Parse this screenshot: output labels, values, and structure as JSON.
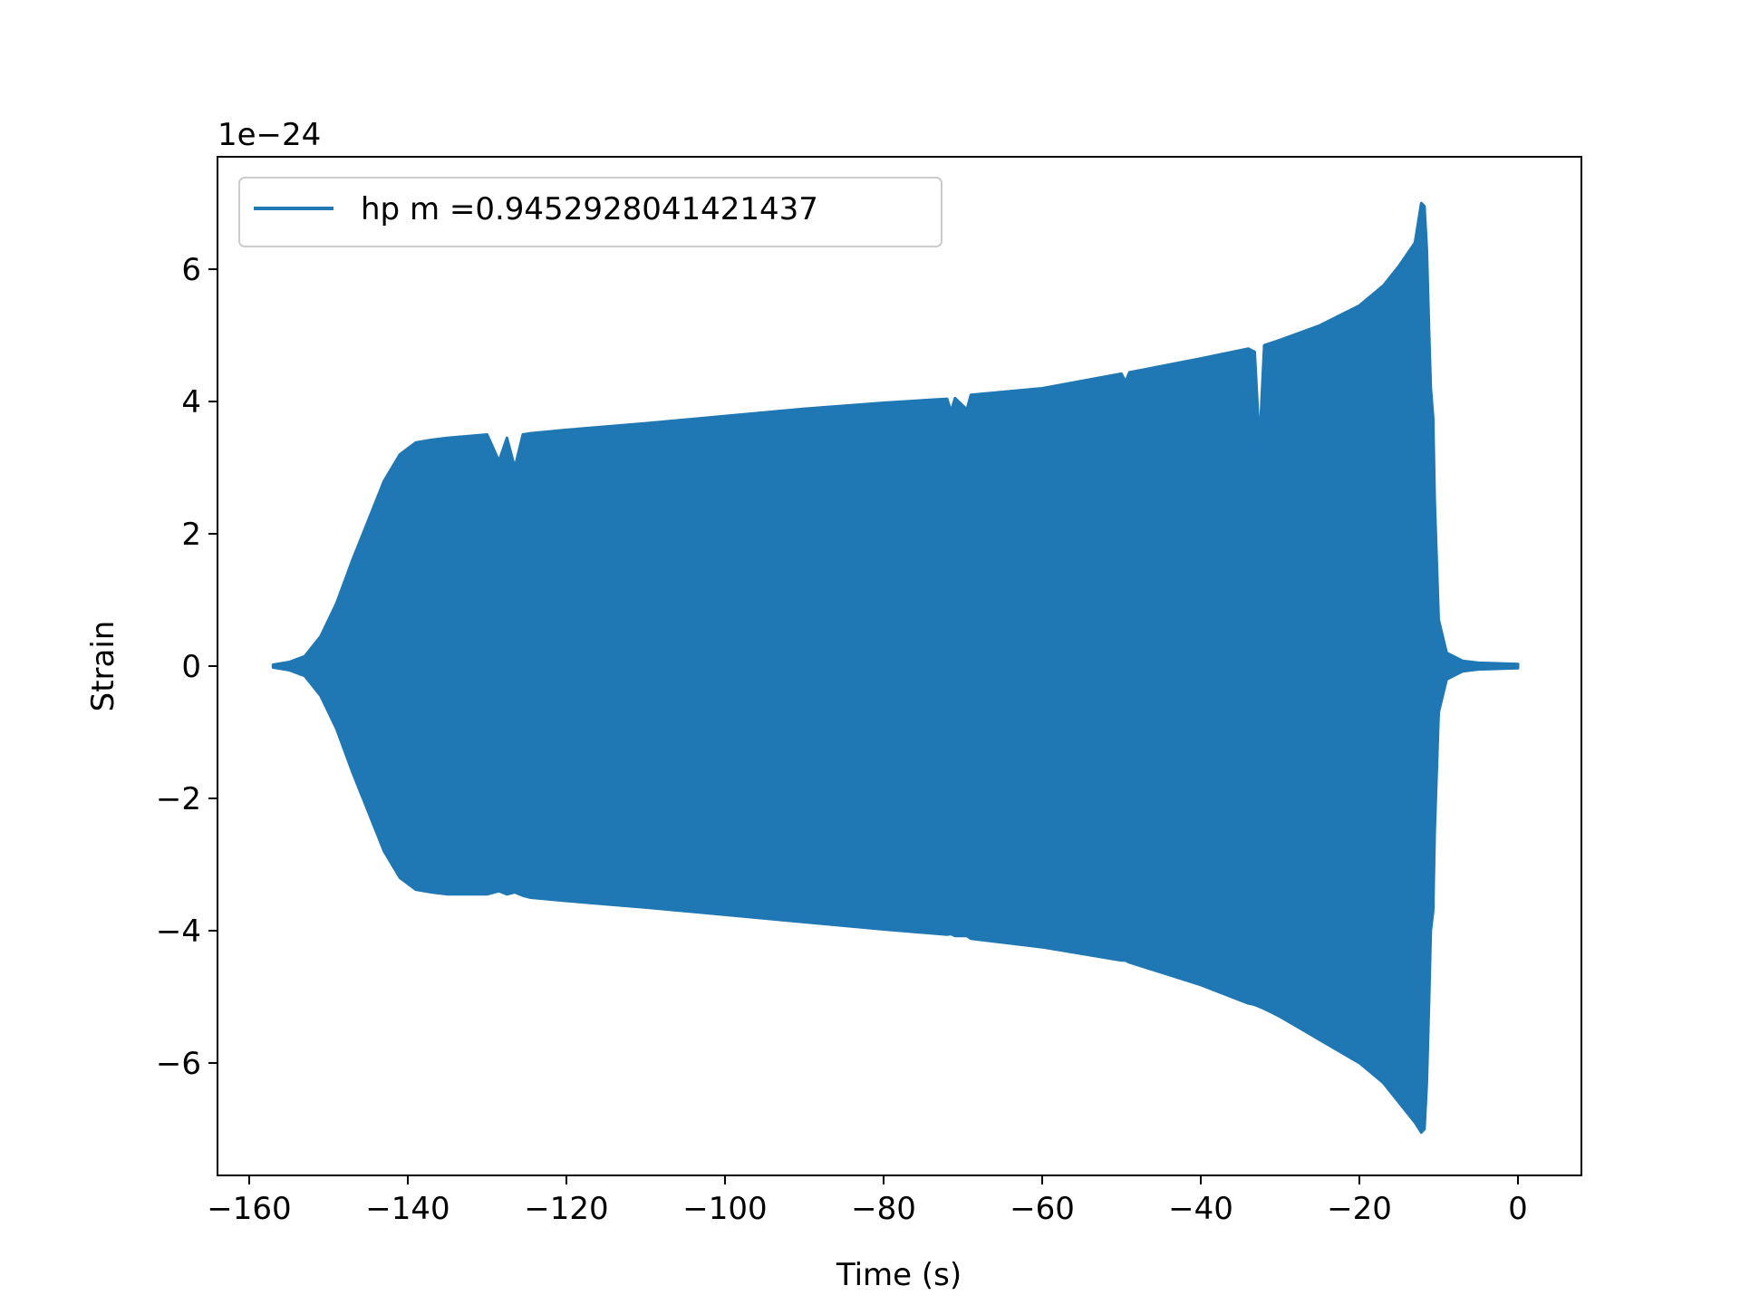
{
  "chart_data": {
    "type": "line",
    "title": "",
    "xlabel": "Time (s)",
    "ylabel": "Strain",
    "y_offset_label": "1e−24",
    "xlim": [
      -164,
      8
    ],
    "ylim": [
      -7.7,
      7.7
    ],
    "xticks": [
      -160,
      -140,
      -120,
      -100,
      -80,
      -60,
      -40,
      -20,
      0
    ],
    "xtick_labels": [
      "−160",
      "−140",
      "−120",
      "−100",
      "−80",
      "−60",
      "−40",
      "−20",
      "0"
    ],
    "yticks": [
      -6,
      -4,
      -2,
      0,
      2,
      4,
      6
    ],
    "ytick_labels": [
      "−6",
      "−4",
      "−2",
      "0",
      "2",
      "4",
      "6"
    ],
    "grid": false,
    "legend_position": "top-left",
    "series": [
      {
        "name": "hp m =0.9452928041421437",
        "color": "#1f77b4",
        "envelope": {
          "x": [
            -157,
            -155,
            -153,
            -151,
            -149,
            -147,
            -145,
            -143,
            -141,
            -139,
            -137,
            -135,
            -130,
            -128.5,
            -127.5,
            -126.5,
            -125.5,
            -124.5,
            -120,
            -110,
            -100,
            -90,
            -80,
            -72,
            -71.5,
            -71,
            -69.5,
            -69,
            -60,
            -50,
            -49.5,
            -49,
            -40,
            -34,
            -33.2,
            -32.6,
            -32,
            -30,
            -25,
            -20,
            -17,
            -15,
            -13,
            -12.2,
            -11.8,
            -11.5,
            -11.2,
            -11,
            -10.7,
            -10.5,
            -10,
            -9,
            -7,
            -5,
            0
          ],
          "upper": [
            0.02,
            0.06,
            0.15,
            0.45,
            0.95,
            1.6,
            2.2,
            2.8,
            3.2,
            3.38,
            3.42,
            3.45,
            3.5,
            3.1,
            3.45,
            3.0,
            3.5,
            3.52,
            3.57,
            3.67,
            3.78,
            3.89,
            3.98,
            4.04,
            3.85,
            4.05,
            3.88,
            4.1,
            4.2,
            4.42,
            4.3,
            4.44,
            4.65,
            4.8,
            4.75,
            3.35,
            4.85,
            4.93,
            5.15,
            5.45,
            5.75,
            6.05,
            6.4,
            7.0,
            6.95,
            6.3,
            5.0,
            4.2,
            3.75,
            2.5,
            0.7,
            0.2,
            0.08,
            0.05,
            0.03
          ],
          "lower": [
            -0.02,
            -0.06,
            -0.15,
            -0.45,
            -0.95,
            -1.6,
            -2.2,
            -2.8,
            -3.2,
            -3.38,
            -3.42,
            -3.45,
            -3.45,
            -3.4,
            -3.45,
            -3.42,
            -3.47,
            -3.5,
            -3.55,
            -3.65,
            -3.76,
            -3.87,
            -3.98,
            -4.06,
            -4.05,
            -4.08,
            -4.08,
            -4.12,
            -4.25,
            -4.45,
            -4.45,
            -4.48,
            -4.82,
            -5.1,
            -5.12,
            -5.15,
            -5.18,
            -5.3,
            -5.65,
            -6.0,
            -6.3,
            -6.6,
            -6.9,
            -7.05,
            -7.0,
            -6.3,
            -5.0,
            -4.0,
            -3.7,
            -2.5,
            -0.7,
            -0.2,
            -0.08,
            -0.05,
            -0.03
          ]
        }
      }
    ]
  }
}
